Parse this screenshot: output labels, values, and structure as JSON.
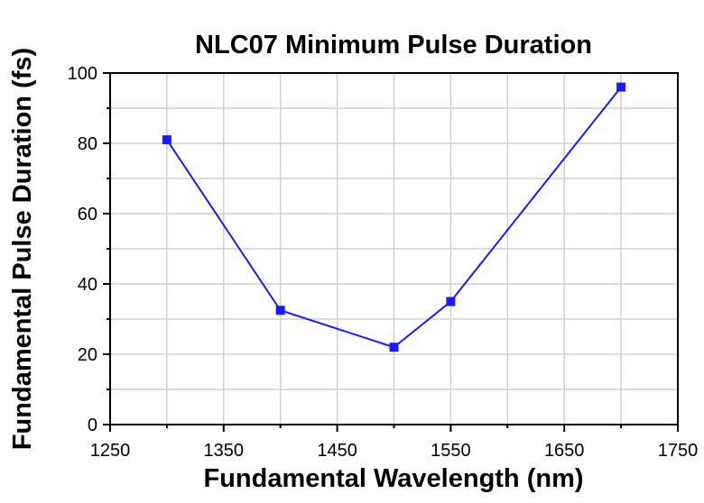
{
  "chart_data": {
    "type": "line",
    "title": "NLC07 Minimum Pulse Duration",
    "xlabel": "Fundamental Wavelength (nm)",
    "ylabel": "Fundamental Pulse Duration (fs)",
    "xlim": [
      1250,
      1750
    ],
    "ylim": [
      0,
      100
    ],
    "x_ticks": [
      "1250",
      "1350",
      "1450",
      "1550",
      "1650",
      "1750"
    ],
    "y_ticks": [
      "0",
      "20",
      "40",
      "60",
      "80",
      "100"
    ],
    "grid": true,
    "series": [
      {
        "x": [
          1300,
          1400,
          1500,
          1550,
          1700
        ],
        "y": [
          81,
          32.5,
          22,
          35,
          96
        ],
        "color": "#1a1aff",
        "marker": "square"
      }
    ]
  }
}
